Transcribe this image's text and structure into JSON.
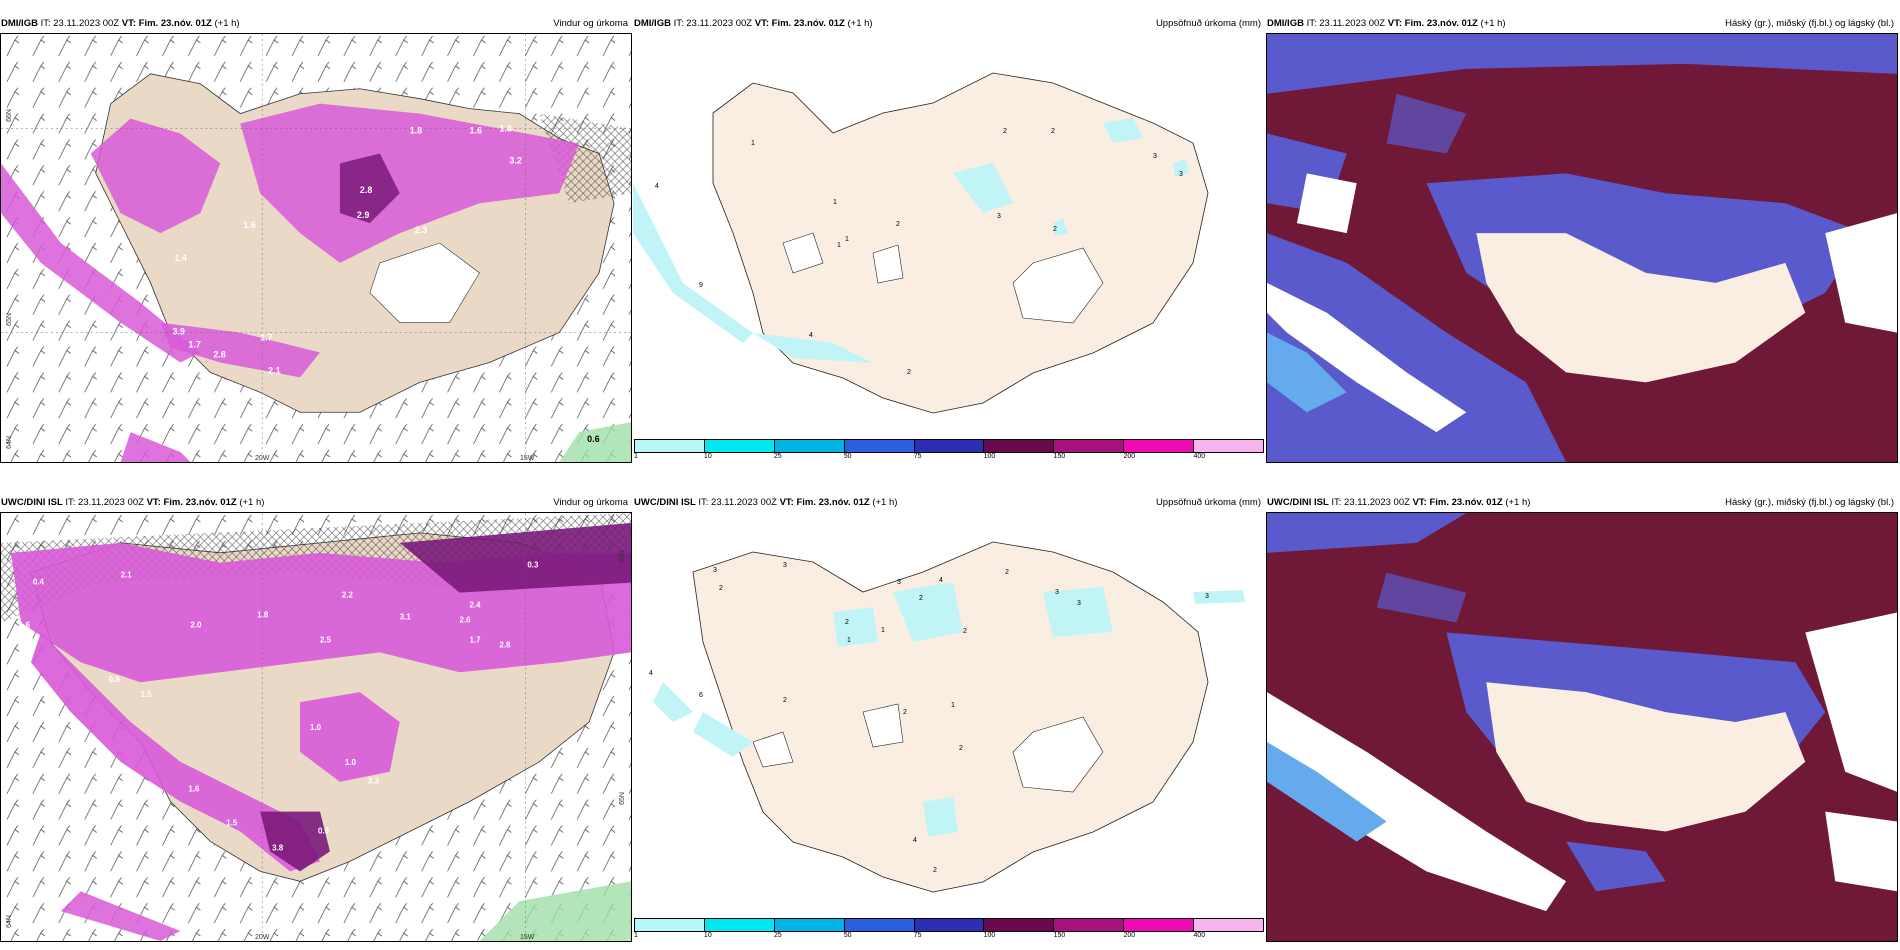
{
  "panels": [
    {
      "model": "DMI/IGB",
      "it": "IT: 23.11.2023 00Z",
      "vt": "VT: Fim. 23.nóv. 01Z",
      "lead": "(+1 h)",
      "title": "Vindur og úrkoma",
      "lat_labels": [
        "66N",
        "65N",
        "64N"
      ],
      "lon_labels": [
        "20W",
        "15W"
      ],
      "values": [
        "1.8",
        "1.6",
        "1.8",
        "2.8",
        "2.9",
        "2.3",
        "3.2",
        "1.6",
        "1.4",
        "3.9",
        "1.7",
        "2.8",
        "1.7",
        "2.1",
        "0.6"
      ]
    },
    {
      "model": "DMI/IGB",
      "it": "IT: 23.11.2023 00Z",
      "vt": "VT: Fim. 23.nóv. 01Z",
      "lead": "(+1 h)",
      "title": "Uppsöfnuð úrkoma (mm)",
      "values": [
        "2",
        "2",
        "3",
        "3",
        "1",
        "1",
        "1",
        "2",
        "3",
        "2",
        "4",
        "9",
        "4",
        "2",
        "1"
      ]
    },
    {
      "model": "DMI/IGB",
      "it": "IT: 23.11.2023 00Z",
      "vt": "VT: Fim. 23.nóv. 01Z",
      "lead": "(+1 h)",
      "title": "Háský (gr.), miðský (fj.bl.) og lágský (bl.)"
    },
    {
      "model": "UWC/DINI ISL",
      "it": "IT: 23.11.2023 00Z",
      "vt": "VT: Fim. 23.nóv. 01Z",
      "lead": "(+1 h)",
      "title": "Vindur og úrkoma",
      "lat_labels": [
        "66N",
        "65N",
        "64N"
      ],
      "lon_labels": [
        "20W",
        "15W"
      ],
      "values": [
        "0.4",
        "1.6",
        "2.1",
        "2.2",
        "1.8",
        "2.0",
        "2.5",
        "1.7",
        "0.3",
        "2.4",
        "2.6",
        "3.1",
        "2.8",
        "1.0",
        "3.8",
        "1.5",
        "0.9",
        "1.5",
        "1.0",
        "3.3",
        "0.6",
        "1.6"
      ]
    },
    {
      "model": "UWC/DINI ISL",
      "it": "IT: 23.11.2023 00Z",
      "vt": "VT: Fim. 23.nóv. 01Z",
      "lead": "(+1 h)",
      "title": "Uppsöfnuð úrkoma (mm)",
      "values": [
        "3",
        "2",
        "3",
        "3",
        "2",
        "4",
        "3",
        "2",
        "2",
        "1",
        "2",
        "1",
        "4",
        "6",
        "2",
        "2",
        "3",
        "1",
        "2",
        "3",
        "4",
        "2"
      ]
    },
    {
      "model": "UWC/DINI ISL",
      "it": "IT: 23.11.2023 00Z",
      "vt": "VT: Fim. 23.nóv. 01Z",
      "lead": "(+1 h)",
      "title": "Háský (gr.), miðský (fj.bl.) og lágský (bl.)"
    }
  ],
  "colorbar": {
    "labels": [
      "1",
      "10",
      "25",
      "50",
      "75",
      "100",
      "150",
      "200",
      "400"
    ],
    "colors": [
      "#b8f6f8",
      "#00e8f0",
      "#00b4e6",
      "#2a5fe0",
      "#2a2fb4",
      "#6a0a4e",
      "#a8127e",
      "#f00ab4",
      "#f6b4f0"
    ]
  },
  "colors": {
    "land": "#faeee2",
    "land_wind": "#ead9c6",
    "precip": "#d85ad8",
    "precip_dark": "#7a1a7a",
    "precip_light": "#c0f4f6",
    "cloud_high": "#7a1a40",
    "cloud_mid": "#5a5acc",
    "cloud_low": "#66aaee"
  }
}
